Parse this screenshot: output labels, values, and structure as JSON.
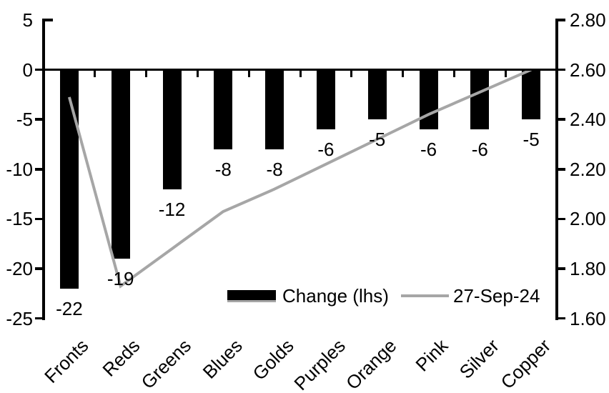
{
  "chart_data": {
    "type": "combo_bar_line",
    "title": "",
    "categories": [
      "Fronts",
      "Reds",
      "Greens",
      "Blues",
      "Golds",
      "Purples",
      "Orange",
      "Pink",
      "Silver",
      "Copper"
    ],
    "series": [
      {
        "name": "Change (lhs)",
        "type": "bar",
        "axis": "left",
        "color": "#000000",
        "values": [
          -22,
          -19,
          -12,
          -8,
          -8,
          -6,
          -5,
          -6,
          -6,
          -5
        ],
        "data_labels": [
          "-22",
          "-19",
          "-12",
          "-8",
          "-8",
          "-6",
          "-5",
          "-6",
          "-6",
          "-5"
        ]
      },
      {
        "name": "27-Sep-24",
        "type": "line",
        "axis": "right",
        "color": "#a6a6a6",
        "values": [
          2.49,
          1.73,
          1.88,
          2.03,
          2.12,
          2.22,
          2.32,
          2.42,
          2.51,
          2.6
        ]
      }
    ],
    "left_axis": {
      "ticks": [
        "5",
        "0",
        "-5",
        "-10",
        "-15",
        "-20",
        "-25"
      ],
      "min": -25,
      "max": 5
    },
    "right_axis": {
      "ticks": [
        "2.80",
        "2.60",
        "2.40",
        "2.20",
        "2.00",
        "1.80",
        "1.60"
      ],
      "min": 1.6,
      "max": 2.8
    },
    "legend_position": "inside-bottom",
    "grid": false
  }
}
